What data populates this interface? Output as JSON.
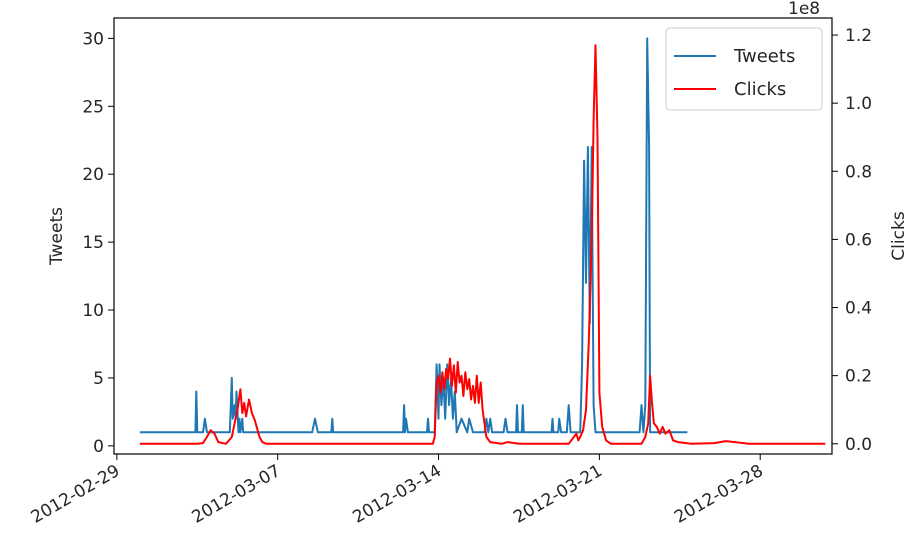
{
  "chart_data": {
    "type": "line",
    "xlabel": "",
    "x_ticks": [
      "2012-02-29",
      "2012-03-07",
      "2012-03-14",
      "2012-03-21",
      "2012-03-28"
    ],
    "x_range": [
      "2012-02-28T21:00",
      "2012-03-31T03:00"
    ],
    "y_left": {
      "label": "Tweets",
      "range": [
        -0.6,
        31.5
      ],
      "ticks": [
        "0",
        "5",
        "10",
        "15",
        "20",
        "25",
        "30"
      ]
    },
    "y_right": {
      "label": "Clicks",
      "range": [
        -3000000,
        125000000
      ],
      "ticks": [
        "0.0",
        "0.2",
        "0.4",
        "0.6",
        "0.8",
        "1.0",
        "1.2"
      ],
      "offset_text": "1e8"
    },
    "legend": {
      "placement": "top-right",
      "entries": [
        "Tweets",
        "Clicks"
      ]
    },
    "series": [
      {
        "name": "Tweets",
        "axis": "left",
        "color": "#1f77b4",
        "points": [
          [
            "2012-03-01T00:00",
            1
          ],
          [
            "2012-03-03T10:00",
            1
          ],
          [
            "2012-03-03T11:00",
            4
          ],
          [
            "2012-03-03T12:00",
            1
          ],
          [
            "2012-03-03T18:00",
            1
          ],
          [
            "2012-03-03T20:00",
            2
          ],
          [
            "2012-03-03T22:00",
            1
          ],
          [
            "2012-03-04T22:00",
            1
          ],
          [
            "2012-03-04T23:00",
            3
          ],
          [
            "2012-03-05T00:00",
            5
          ],
          [
            "2012-03-05T01:00",
            2
          ],
          [
            "2012-03-05T03:00",
            3
          ],
          [
            "2012-03-05T04:00",
            2
          ],
          [
            "2012-03-05T05:00",
            4
          ],
          [
            "2012-03-05T07:00",
            1
          ],
          [
            "2012-03-05T08:00",
            2
          ],
          [
            "2012-03-05T09:00",
            1
          ],
          [
            "2012-03-05T11:00",
            2
          ],
          [
            "2012-03-05T12:00",
            1
          ],
          [
            "2012-03-08T12:00",
            1
          ],
          [
            "2012-03-08T15:00",
            2
          ],
          [
            "2012-03-08T18:00",
            1
          ],
          [
            "2012-03-09T08:00",
            1
          ],
          [
            "2012-03-09T09:00",
            2
          ],
          [
            "2012-03-09T10:00",
            1
          ],
          [
            "2012-03-12T11:00",
            1
          ],
          [
            "2012-03-12T12:00",
            3
          ],
          [
            "2012-03-12T13:00",
            1
          ],
          [
            "2012-03-12T14:00",
            2
          ],
          [
            "2012-03-12T16:00",
            1
          ],
          [
            "2012-03-13T12:00",
            1
          ],
          [
            "2012-03-13T13:00",
            2
          ],
          [
            "2012-03-13T14:00",
            1
          ],
          [
            "2012-03-13T20:00",
            1
          ],
          [
            "2012-03-13T22:00",
            6
          ],
          [
            "2012-03-14T00:00",
            2
          ],
          [
            "2012-03-14T01:00",
            6
          ],
          [
            "2012-03-14T03:00",
            3
          ],
          [
            "2012-03-14T05:00",
            5
          ],
          [
            "2012-03-14T07:00",
            2
          ],
          [
            "2012-03-14T09:00",
            6
          ],
          [
            "2012-03-14T11:00",
            3
          ],
          [
            "2012-03-14T13:00",
            5
          ],
          [
            "2012-03-14T15:00",
            2
          ],
          [
            "2012-03-14T17:00",
            4
          ],
          [
            "2012-03-14T19:00",
            1
          ],
          [
            "2012-03-15T00:00",
            2
          ],
          [
            "2012-03-15T06:00",
            1
          ],
          [
            "2012-03-15T08:00",
            2
          ],
          [
            "2012-03-15T12:00",
            1
          ],
          [
            "2012-03-16T00:00",
            1
          ],
          [
            "2012-03-16T02:00",
            2
          ],
          [
            "2012-03-16T04:00",
            1
          ],
          [
            "2012-03-16T06:00",
            2
          ],
          [
            "2012-03-16T08:00",
            1
          ],
          [
            "2012-03-16T20:00",
            1
          ],
          [
            "2012-03-16T22:00",
            2
          ],
          [
            "2012-03-17T00:00",
            1
          ],
          [
            "2012-03-17T09:00",
            1
          ],
          [
            "2012-03-17T10:00",
            3
          ],
          [
            "2012-03-17T11:00",
            1
          ],
          [
            "2012-03-17T15:00",
            1
          ],
          [
            "2012-03-17T16:00",
            3
          ],
          [
            "2012-03-17T17:00",
            1
          ],
          [
            "2012-03-18T22:00",
            1
          ],
          [
            "2012-03-18T23:00",
            2
          ],
          [
            "2012-03-19T00:00",
            1
          ],
          [
            "2012-03-19T05:00",
            1
          ],
          [
            "2012-03-19T06:00",
            2
          ],
          [
            "2012-03-19T08:00",
            1
          ],
          [
            "2012-03-19T14:00",
            1
          ],
          [
            "2012-03-19T16:00",
            3
          ],
          [
            "2012-03-19T18:00",
            1
          ],
          [
            "2012-03-20T04:00",
            1
          ],
          [
            "2012-03-20T06:00",
            6
          ],
          [
            "2012-03-20T08:00",
            21
          ],
          [
            "2012-03-20T10:00",
            12
          ],
          [
            "2012-03-20T12:00",
            22
          ],
          [
            "2012-03-20T14:00",
            9
          ],
          [
            "2012-03-20T16:00",
            22
          ],
          [
            "2012-03-20T18:00",
            3
          ],
          [
            "2012-03-20T20:00",
            1
          ],
          [
            "2012-03-22T18:00",
            1
          ],
          [
            "2012-03-22T20:00",
            3
          ],
          [
            "2012-03-22T22:00",
            1
          ],
          [
            "2012-03-23T00:00",
            3
          ],
          [
            "2012-03-23T02:00",
            30
          ],
          [
            "2012-03-23T04:00",
            22
          ],
          [
            "2012-03-23T05:00",
            1
          ],
          [
            "2012-03-24T20:00",
            1
          ]
        ]
      },
      {
        "name": "Clicks",
        "axis": "right",
        "color": "#ff0000",
        "points": [
          [
            "2012-03-01T00:00",
            0
          ],
          [
            "2012-03-03T12:00",
            0
          ],
          [
            "2012-03-03T18:00",
            200000
          ],
          [
            "2012-03-03T22:00",
            2000000
          ],
          [
            "2012-03-04T02:00",
            4000000
          ],
          [
            "2012-03-04T06:00",
            3000000
          ],
          [
            "2012-03-04T10:00",
            500000
          ],
          [
            "2012-03-04T18:00",
            0
          ],
          [
            "2012-03-05T00:00",
            2000000
          ],
          [
            "2012-03-05T03:00",
            6000000
          ],
          [
            "2012-03-05T06:00",
            10000000
          ],
          [
            "2012-03-05T09:00",
            16000000
          ],
          [
            "2012-03-05T11:00",
            9000000
          ],
          [
            "2012-03-05T13:00",
            12000000
          ],
          [
            "2012-03-05T15:00",
            8000000
          ],
          [
            "2012-03-05T18:00",
            13000000
          ],
          [
            "2012-03-05T21:00",
            9000000
          ],
          [
            "2012-03-06T00:00",
            7000000
          ],
          [
            "2012-03-06T03:00",
            4000000
          ],
          [
            "2012-03-06T05:00",
            2000000
          ],
          [
            "2012-03-06T08:00",
            500000
          ],
          [
            "2012-03-06T12:00",
            0
          ],
          [
            "2012-03-13T18:00",
            0
          ],
          [
            "2012-03-13T20:00",
            2000000
          ],
          [
            "2012-03-13T22:00",
            18000000
          ],
          [
            "2012-03-14T00:00",
            20000000
          ],
          [
            "2012-03-14T02:00",
            15000000
          ],
          [
            "2012-03-14T04:00",
            21000000
          ],
          [
            "2012-03-14T06:00",
            16000000
          ],
          [
            "2012-03-14T08:00",
            22000000
          ],
          [
            "2012-03-14T10:00",
            19000000
          ],
          [
            "2012-03-14T12:00",
            25000000
          ],
          [
            "2012-03-14T14:00",
            17000000
          ],
          [
            "2012-03-14T16:00",
            23000000
          ],
          [
            "2012-03-14T18:00",
            15000000
          ],
          [
            "2012-03-14T20:00",
            24000000
          ],
          [
            "2012-03-14T22:00",
            18000000
          ],
          [
            "2012-03-15T00:00",
            20000000
          ],
          [
            "2012-03-15T02:00",
            14000000
          ],
          [
            "2012-03-15T04:00",
            21000000
          ],
          [
            "2012-03-15T06:00",
            16000000
          ],
          [
            "2012-03-15T08:00",
            19000000
          ],
          [
            "2012-03-15T10:00",
            13000000
          ],
          [
            "2012-03-15T12:00",
            17000000
          ],
          [
            "2012-03-15T14:00",
            12000000
          ],
          [
            "2012-03-15T16:00",
            20000000
          ],
          [
            "2012-03-15T18:00",
            12000000
          ],
          [
            "2012-03-15T20:00",
            18000000
          ],
          [
            "2012-03-15T22:00",
            10000000
          ],
          [
            "2012-03-16T00:00",
            6000000
          ],
          [
            "2012-03-16T02:00",
            2000000
          ],
          [
            "2012-03-16T06:00",
            500000
          ],
          [
            "2012-03-16T18:00",
            0
          ],
          [
            "2012-03-17T00:00",
            500000
          ],
          [
            "2012-03-17T12:00",
            0
          ],
          [
            "2012-03-19T16:00",
            0
          ],
          [
            "2012-03-19T20:00",
            1500000
          ],
          [
            "2012-03-20T00:00",
            3000000
          ],
          [
            "2012-03-20T02:00",
            1000000
          ],
          [
            "2012-03-20T04:00",
            2000000
          ],
          [
            "2012-03-20T07:00",
            4000000
          ],
          [
            "2012-03-20T10:00",
            10000000
          ],
          [
            "2012-03-20T13:00",
            30000000
          ],
          [
            "2012-03-20T16:00",
            60000000
          ],
          [
            "2012-03-20T18:00",
            95000000
          ],
          [
            "2012-03-20T20:00",
            117000000
          ],
          [
            "2012-03-20T22:00",
            90000000
          ],
          [
            "2012-03-21T00:00",
            15000000
          ],
          [
            "2012-03-21T03:00",
            5000000
          ],
          [
            "2012-03-21T07:00",
            1000000
          ],
          [
            "2012-03-21T12:00",
            0
          ],
          [
            "2012-03-22T20:00",
            0
          ],
          [
            "2012-03-23T00:00",
            2000000
          ],
          [
            "2012-03-23T03:00",
            6000000
          ],
          [
            "2012-03-23T05:00",
            20000000
          ],
          [
            "2012-03-23T07:00",
            12000000
          ],
          [
            "2012-03-23T09:00",
            6000000
          ],
          [
            "2012-03-23T12:00",
            5000000
          ],
          [
            "2012-03-23T15:00",
            3000000
          ],
          [
            "2012-03-23T18:00",
            5000000
          ],
          [
            "2012-03-23T21:00",
            3000000
          ],
          [
            "2012-03-24T01:00",
            4000000
          ],
          [
            "2012-03-24T05:00",
            1000000
          ],
          [
            "2012-03-24T10:00",
            500000
          ],
          [
            "2012-03-25T00:00",
            0
          ],
          [
            "2012-03-26T00:00",
            200000
          ],
          [
            "2012-03-26T12:00",
            800000
          ],
          [
            "2012-03-27T00:00",
            400000
          ],
          [
            "2012-03-27T12:00",
            0
          ],
          [
            "2012-03-28T12:00",
            0
          ],
          [
            "2012-03-30T20:00",
            0
          ]
        ]
      }
    ]
  }
}
